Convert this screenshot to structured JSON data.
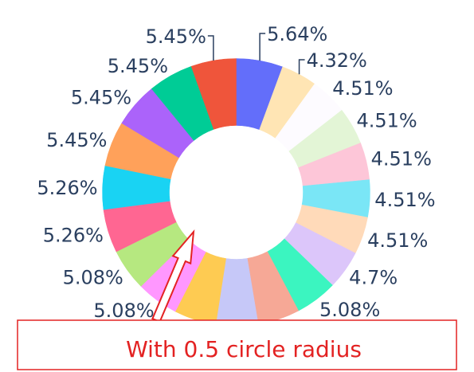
{
  "chart_data": {
    "type": "pie",
    "hole": 0.5,
    "direction": "clockwise",
    "sort": false,
    "slices": [
      {
        "label": "5.64%",
        "value": 5.64,
        "color": "#636efa"
      },
      {
        "label": "4.32%",
        "value": 4.32,
        "color": "#ffe5b4"
      },
      {
        "label": "4.51%",
        "value": 4.51,
        "color": "#fdfbff"
      },
      {
        "label": "4.51%",
        "value": 4.51,
        "color": "#e3f5d6"
      },
      {
        "label": "4.51%",
        "value": 4.51,
        "color": "#fdc6d8"
      },
      {
        "label": "4.51%",
        "value": 4.51,
        "color": "#7ae6f6"
      },
      {
        "label": "4.51%",
        "value": 4.51,
        "color": "#ffdab9"
      },
      {
        "label": "4.7%",
        "value": 4.7,
        "color": "#dcc6fa"
      },
      {
        "label": "5.08%",
        "value": 5.08,
        "color": "#3bf5c0"
      },
      {
        "label": "5.08%",
        "value": 5.08,
        "color": "#f6a896"
      },
      {
        "label": "5.08%",
        "value": 5.08,
        "color": "#c6c8f8"
      },
      {
        "label": "5.08%",
        "value": 5.08,
        "color": "#fecb52"
      },
      {
        "label": "5.08%",
        "value": 5.08,
        "color": "#ff97ff"
      },
      {
        "label": "5.08%",
        "value": 5.08,
        "color": "#b6e880"
      },
      {
        "label": "5.26%",
        "value": 5.26,
        "color": "#ff6692"
      },
      {
        "label": "5.26%",
        "value": 5.26,
        "color": "#19d3f3"
      },
      {
        "label": "5.45%",
        "value": 5.45,
        "color": "#ffa15a"
      },
      {
        "label": "5.45%",
        "value": 5.45,
        "color": "#ab63fa"
      },
      {
        "label": "5.45%",
        "value": 5.45,
        "color": "#00cc96"
      },
      {
        "label": "5.45%",
        "value": 5.45,
        "color": "#ef553b"
      }
    ]
  },
  "annotation": {
    "text": "With 0.5 circle radius",
    "color": "#e32222"
  }
}
